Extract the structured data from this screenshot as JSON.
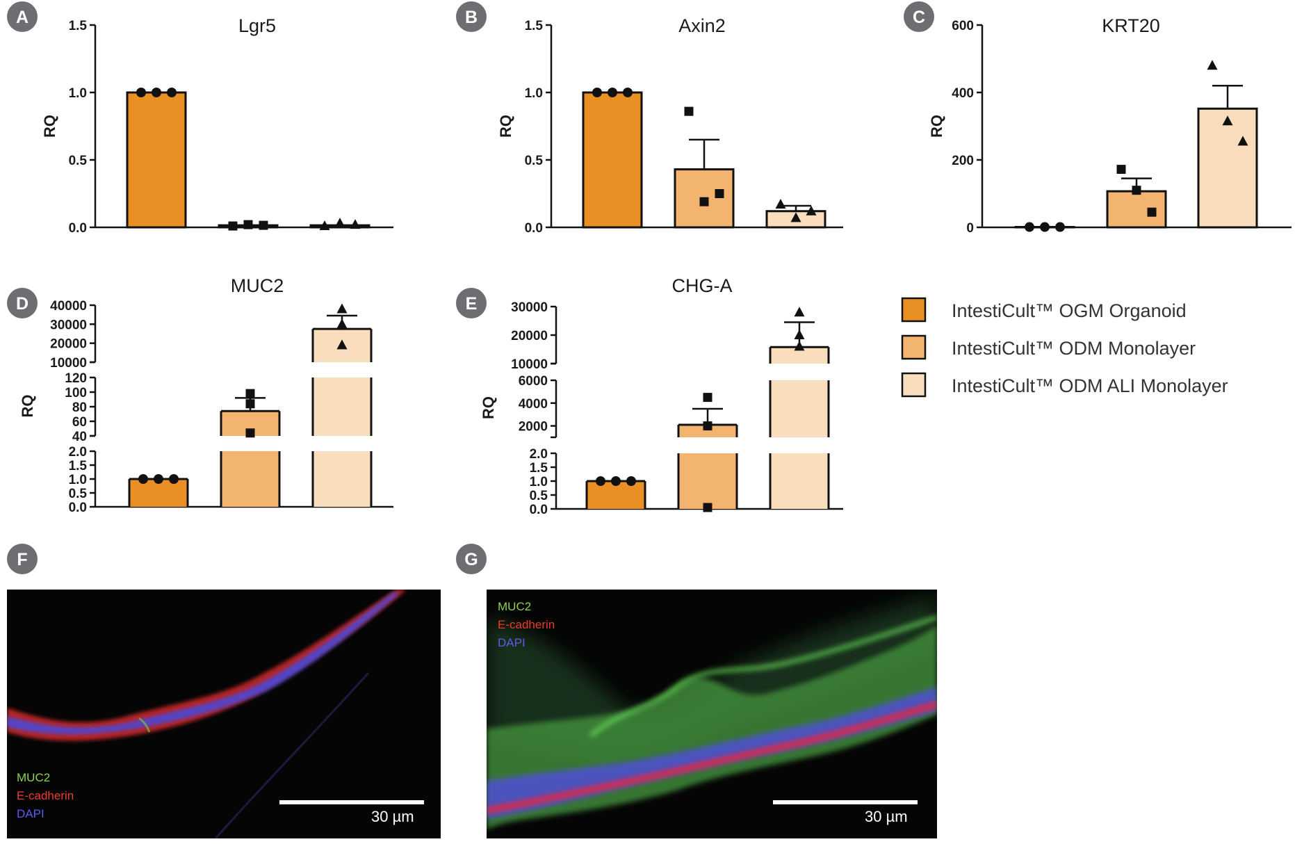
{
  "colors": {
    "ogm": "#E98F24",
    "odm": "#F2B46E",
    "ali": "#F9DDBC",
    "badge": "#6D6E71",
    "muc2": "#8fd14f",
    "ecad": "#ef3b2c",
    "dapi": "#5c5cf0"
  },
  "legend": {
    "items": [
      {
        "label": "IntestiCult™ OGM Organoid",
        "color": "#E98F24"
      },
      {
        "label": "IntestiCult™ ODM Monolayer",
        "color": "#F2B46E"
      },
      {
        "label": "IntestiCult™ ODM ALI Monolayer",
        "color": "#F9DDBC"
      }
    ]
  },
  "chart_data": [
    {
      "panel": "A",
      "type": "bar",
      "title": "Lgr5",
      "ylabel": "RQ",
      "categories": [
        "IntestiCult™ OGM Organoid",
        "IntestiCult™ ODM Monolayer",
        "IntestiCult™ ODM ALI Monolayer"
      ],
      "ylim": [
        0,
        1.5
      ],
      "yticks": [
        "0.0",
        "0.5",
        "1.0",
        "1.5"
      ],
      "values": [
        1.0,
        0.015,
        0.015
      ],
      "errors": [
        0,
        0,
        0
      ],
      "points": [
        [
          1.0,
          1.0,
          1.0
        ],
        [
          0.01,
          0.02,
          0.015
        ],
        [
          0.01,
          0.03,
          0.02
        ]
      ]
    },
    {
      "panel": "B",
      "type": "bar",
      "title": "Axin2",
      "ylabel": "RQ",
      "categories": [
        "IntestiCult™ OGM Organoid",
        "IntestiCult™ ODM Monolayer",
        "IntestiCult™ ODM ALI Monolayer"
      ],
      "ylim": [
        0,
        1.5
      ],
      "yticks": [
        "0.0",
        "0.5",
        "1.0",
        "1.5"
      ],
      "values": [
        1.0,
        0.43,
        0.12
      ],
      "errors": [
        0,
        0.22,
        0.04
      ],
      "points": [
        [
          1.0,
          1.0,
          1.0
        ],
        [
          0.86,
          0.19,
          0.25
        ],
        [
          0.17,
          0.07,
          0.12
        ]
      ]
    },
    {
      "panel": "C",
      "type": "bar",
      "title": "KRT20",
      "ylabel": "RQ",
      "categories": [
        "IntestiCult™ OGM Organoid",
        "IntestiCult™ ODM Monolayer",
        "IntestiCult™ ODM ALI Monolayer"
      ],
      "ylim": [
        0,
        600
      ],
      "yticks": [
        "0",
        "200",
        "400",
        "600"
      ],
      "values": [
        1,
        107,
        352
      ],
      "errors": [
        0,
        38,
        68
      ],
      "points": [
        [
          1,
          1,
          1
        ],
        [
          172,
          110,
          45
        ],
        [
          480,
          315,
          255
        ]
      ]
    },
    {
      "panel": "D",
      "type": "bar",
      "title": "MUC2",
      "ylabel": "RQ",
      "broken_axis": true,
      "categories": [
        "IntestiCult™ OGM Organoid",
        "IntestiCult™ ODM Monolayer",
        "IntestiCult™ ODM ALI Monolayer"
      ],
      "segments": [
        {
          "range": [
            0,
            2
          ],
          "ticks": [
            "0.0",
            "0.5",
            "1.0",
            "1.5",
            "2.0"
          ]
        },
        {
          "range": [
            40,
            120
          ],
          "ticks": [
            "40",
            "60",
            "80",
            "100",
            "120"
          ]
        },
        {
          "range": [
            10000,
            40000
          ],
          "ticks": [
            "10000",
            "20000",
            "30000",
            "40000"
          ]
        }
      ],
      "values": [
        1.0,
        74,
        27500
      ],
      "errors": [
        0,
        18,
        7000
      ],
      "points": [
        [
          1.0,
          1.0,
          1.0
        ],
        [
          98,
          84,
          44
        ],
        [
          38000,
          30000,
          19000
        ]
      ]
    },
    {
      "panel": "E",
      "type": "bar",
      "title": "CHG-A",
      "ylabel": "RQ",
      "broken_axis": true,
      "categories": [
        "IntestiCult™ OGM Organoid",
        "IntestiCult™ ODM Monolayer",
        "IntestiCult™ ODM ALI Monolayer"
      ],
      "segments": [
        {
          "range": [
            0,
            2
          ],
          "ticks": [
            "0.0",
            "0.5",
            "1.0",
            "1.5",
            "2.0"
          ]
        },
        {
          "range": [
            1000,
            6000
          ],
          "ticks": [
            "2000",
            "4000",
            "6000"
          ]
        },
        {
          "range": [
            10000,
            30000
          ],
          "ticks": [
            "10000",
            "20000",
            "30000"
          ]
        }
      ],
      "values": [
        1.0,
        2100,
        15800
      ],
      "errors": [
        0,
        1400,
        8700
      ],
      "points": [
        [
          1.0,
          1.0,
          1.0
        ],
        [
          4500,
          2000,
          0.05
        ],
        [
          28000,
          20000,
          16000
        ]
      ]
    }
  ],
  "images": [
    {
      "panel": "F",
      "channels": [
        {
          "label": "MUC2",
          "color": "#8fd14f"
        },
        {
          "label": "E-cadherin",
          "color": "#ef3b2c"
        },
        {
          "label": "DAPI",
          "color": "#5c5cf0"
        }
      ],
      "scale": "30 µm"
    },
    {
      "panel": "G",
      "channels": [
        {
          "label": "MUC2",
          "color": "#8fd14f"
        },
        {
          "label": "E-cadherin",
          "color": "#ef3b2c"
        },
        {
          "label": "DAPI",
          "color": "#5c5cf0"
        }
      ],
      "scale": "30 µm"
    }
  ]
}
